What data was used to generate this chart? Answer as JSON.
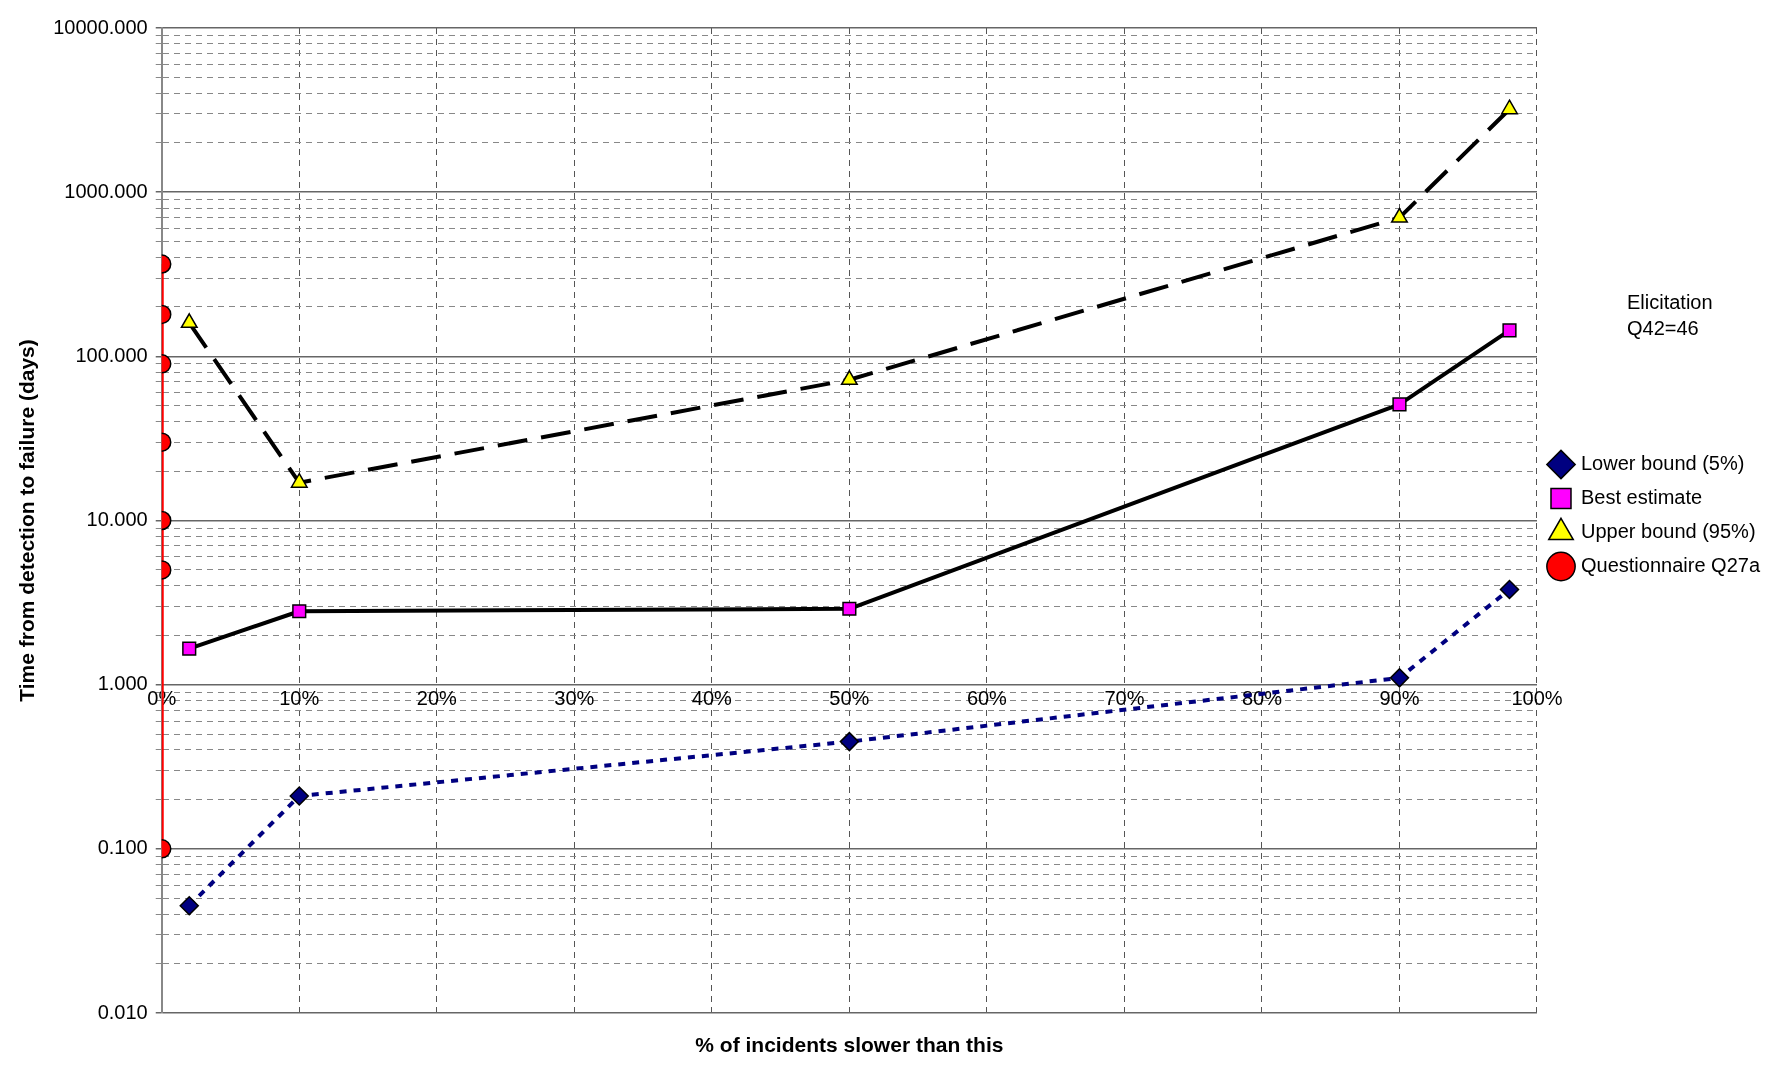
{
  "chart_data": {
    "type": "line",
    "xlabel": "% of incidents slower than this",
    "ylabel": "Time from detection to failure (days)",
    "annotations": [
      "Elicitation\nQ42=46"
    ],
    "xlim": [
      0,
      100
    ],
    "xticks": [
      {
        "value": 0,
        "label": "0%"
      },
      {
        "value": 10,
        "label": "10%"
      },
      {
        "value": 20,
        "label": "20%"
      },
      {
        "value": 30,
        "label": "30%"
      },
      {
        "value": 40,
        "label": "40%"
      },
      {
        "value": 50,
        "label": "50%"
      },
      {
        "value": 60,
        "label": "60%"
      },
      {
        "value": 70,
        "label": "70%"
      },
      {
        "value": 80,
        "label": "80%"
      },
      {
        "value": 90,
        "label": "90%"
      },
      {
        "value": 100,
        "label": "100%"
      }
    ],
    "log": "y",
    "ylim": [
      0.01,
      10000
    ],
    "yticks": [
      {
        "value": 0.01,
        "label": "0.010"
      },
      {
        "value": 0.02,
        "label": null
      },
      {
        "value": 0.03,
        "label": null
      },
      {
        "value": 0.04,
        "label": null
      },
      {
        "value": 0.05,
        "label": null
      },
      {
        "value": 0.06,
        "label": null
      },
      {
        "value": 0.07,
        "label": null
      },
      {
        "value": 0.08,
        "label": null
      },
      {
        "value": 0.09,
        "label": null
      },
      {
        "value": 0.1,
        "label": "0.100"
      },
      {
        "value": 0.2,
        "label": null
      },
      {
        "value": 0.3,
        "label": null
      },
      {
        "value": 0.4,
        "label": null
      },
      {
        "value": 0.5,
        "label": null
      },
      {
        "value": 0.6,
        "label": null
      },
      {
        "value": 0.7,
        "label": null
      },
      {
        "value": 0.8,
        "label": null
      },
      {
        "value": 0.9,
        "label": null
      },
      {
        "value": 1,
        "label": "1.000"
      },
      {
        "value": 2,
        "label": null
      },
      {
        "value": 3,
        "label": null
      },
      {
        "value": 4,
        "label": null
      },
      {
        "value": 5,
        "label": null
      },
      {
        "value": 6,
        "label": null
      },
      {
        "value": 7,
        "label": null
      },
      {
        "value": 8,
        "label": null
      },
      {
        "value": 9,
        "label": null
      },
      {
        "value": 10,
        "label": "10.000"
      },
      {
        "value": 20,
        "label": null
      },
      {
        "value": 30,
        "label": null
      },
      {
        "value": 40,
        "label": null
      },
      {
        "value": 50,
        "label": null
      },
      {
        "value": 60,
        "label": null
      },
      {
        "value": 70,
        "label": null
      },
      {
        "value": 80,
        "label": null
      },
      {
        "value": 90,
        "label": null
      },
      {
        "value": 100,
        "label": "100.000"
      },
      {
        "value": 200,
        "label": null
      },
      {
        "value": 300,
        "label": null
      },
      {
        "value": 400,
        "label": null
      },
      {
        "value": 500,
        "label": null
      },
      {
        "value": 600,
        "label": null
      },
      {
        "value": 700,
        "label": null
      },
      {
        "value": 800,
        "label": null
      },
      {
        "value": 900,
        "label": null
      },
      {
        "value": 1000,
        "label": "1000.000"
      },
      {
        "value": 2000,
        "label": null
      },
      {
        "value": 3000,
        "label": null
      },
      {
        "value": 4000,
        "label": null
      },
      {
        "value": 5000,
        "label": null
      },
      {
        "value": 6000,
        "label": null
      },
      {
        "value": 7000,
        "label": null
      },
      {
        "value": 8000,
        "label": null
      },
      {
        "value": 9000,
        "label": null
      },
      {
        "value": 10000,
        "label": "10000.000"
      }
    ],
    "grid": true,
    "legend": "right",
    "series": [
      {
        "name": "Lower bound (5%)",
        "color": "#000080",
        "colors": [
          "#000080",
          "#000080",
          "#000080",
          "#000080",
          "#000080"
        ],
        "marker": "diamond",
        "line_style": "dotted",
        "x": [
          2,
          10,
          50,
          90,
          98
        ],
        "values": [
          0.045,
          0.21,
          0.45,
          1.1,
          3.8
        ]
      },
      {
        "name": "Best estimate",
        "color": "#000000",
        "colors": [
          "#ff00ff",
          "#ff00ff",
          "#ff00ff",
          "#ff00ff",
          "#ff00ff"
        ],
        "marker": "square",
        "line_style": "solid",
        "x": [
          2,
          10,
          50,
          90,
          98
        ],
        "values": [
          1.66,
          2.8,
          2.9,
          51,
          144
        ]
      },
      {
        "name": "Upper bound (95%)",
        "color": "#000000",
        "colors": [
          "#ffff00",
          "#ffff00",
          "#ffff00",
          "#ffff00",
          "#ffff00"
        ],
        "marker": "triangle",
        "line_style": "dashed",
        "x": [
          2,
          10,
          50,
          90,
          98
        ],
        "values": [
          160,
          17,
          72,
          700,
          3200
        ]
      },
      {
        "name": "Questionnaire Q27a",
        "color": "#ff0000",
        "colors": [
          "#ff0000",
          "#ff0000",
          "#ff0000",
          "#ff0000",
          "#ff0000",
          "#ff0000",
          "#ff0000"
        ],
        "marker": "circle",
        "line_style": "solid",
        "x": [
          0,
          0,
          0,
          0,
          0,
          0,
          0
        ],
        "values": [
          0.1,
          5,
          10,
          30,
          90,
          180,
          365
        ]
      }
    ]
  }
}
